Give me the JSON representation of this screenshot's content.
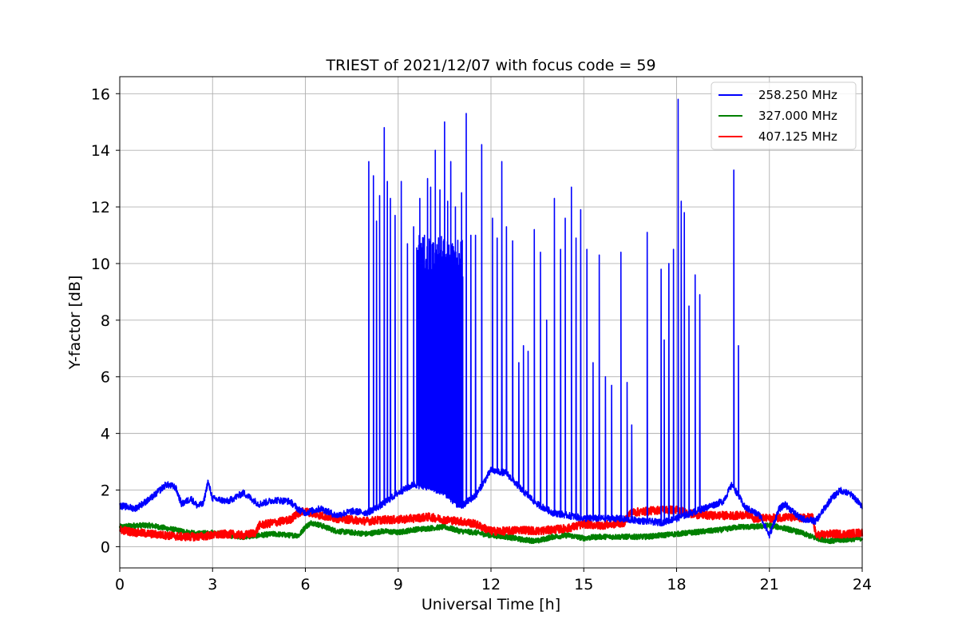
{
  "chart_data": {
    "type": "line",
    "title": "TRIEST of 2021/12/07 with focus code = 59",
    "xlabel": "Universal Time [h]",
    "ylabel": "Y-factor [dB]",
    "xlim": [
      0,
      24
    ],
    "ylim": [
      -0.75,
      16.6
    ],
    "xticks": [
      0,
      3,
      6,
      9,
      12,
      15,
      18,
      21,
      24
    ],
    "yticks": [
      0,
      2,
      4,
      6,
      8,
      10,
      12,
      14,
      16
    ],
    "grid": true,
    "legend_position": "top-right",
    "series": [
      {
        "name": "258.250 MHz",
        "color": "#0000ff",
        "base": [
          [
            0,
            1.45
          ],
          [
            0.5,
            1.35
          ],
          [
            1.0,
            1.7
          ],
          [
            1.5,
            2.2
          ],
          [
            1.8,
            2.1
          ],
          [
            2.0,
            1.5
          ],
          [
            2.3,
            1.7
          ],
          [
            2.5,
            1.45
          ],
          [
            2.7,
            1.5
          ],
          [
            2.85,
            2.3
          ],
          [
            3.0,
            1.7
          ],
          [
            3.5,
            1.6
          ],
          [
            4.0,
            1.9
          ],
          [
            4.5,
            1.5
          ],
          [
            5.0,
            1.65
          ],
          [
            5.5,
            1.6
          ],
          [
            5.8,
            1.3
          ],
          [
            6.0,
            1.2
          ],
          [
            6.5,
            1.35
          ],
          [
            7.0,
            1.1
          ],
          [
            7.5,
            1.25
          ],
          [
            8.0,
            1.2
          ],
          [
            8.5,
            1.5
          ],
          [
            9.0,
            1.9
          ],
          [
            9.5,
            2.2
          ],
          [
            10.0,
            2.1
          ],
          [
            10.5,
            1.9
          ],
          [
            11.0,
            1.4
          ],
          [
            11.5,
            1.8
          ],
          [
            12.0,
            2.7
          ],
          [
            12.5,
            2.6
          ],
          [
            13.0,
            2.0
          ],
          [
            13.5,
            1.5
          ],
          [
            14.0,
            1.2
          ],
          [
            15.0,
            1.0
          ],
          [
            16.0,
            1.0
          ],
          [
            17.0,
            0.9
          ],
          [
            17.5,
            0.85
          ],
          [
            18.0,
            1.0
          ],
          [
            18.5,
            1.2
          ],
          [
            19.0,
            1.4
          ],
          [
            19.5,
            1.6
          ],
          [
            19.8,
            2.2
          ],
          [
            20.2,
            1.4
          ],
          [
            20.7,
            1.1
          ],
          [
            21.0,
            0.4
          ],
          [
            21.3,
            1.3
          ],
          [
            21.5,
            1.5
          ],
          [
            22.0,
            1.0
          ],
          [
            22.5,
            0.9
          ],
          [
            23.0,
            1.7
          ],
          [
            23.3,
            2.0
          ],
          [
            23.7,
            1.8
          ],
          [
            24.0,
            1.4
          ]
        ],
        "noise": 0.12,
        "spikes": [
          [
            8.05,
            13.6
          ],
          [
            8.2,
            13.1
          ],
          [
            8.3,
            11.5
          ],
          [
            8.4,
            12.4
          ],
          [
            8.55,
            14.8
          ],
          [
            8.65,
            12.9
          ],
          [
            8.75,
            12.3
          ],
          [
            8.9,
            11.7
          ],
          [
            9.1,
            12.9
          ],
          [
            9.3,
            10.7
          ],
          [
            9.5,
            11.3
          ],
          [
            9.7,
            12.3
          ],
          [
            9.85,
            11.0
          ],
          [
            9.95,
            13.0
          ],
          [
            10.05,
            12.7
          ],
          [
            10.2,
            14.0
          ],
          [
            10.35,
            12.6
          ],
          [
            10.5,
            15.0
          ],
          [
            10.6,
            12.2
          ],
          [
            10.7,
            13.6
          ],
          [
            10.85,
            12.0
          ],
          [
            11.05,
            12.5
          ],
          [
            11.2,
            15.3
          ],
          [
            11.35,
            11.0
          ],
          [
            11.5,
            11.0
          ],
          [
            11.7,
            14.2
          ],
          [
            12.05,
            11.6
          ],
          [
            12.2,
            10.9
          ],
          [
            12.35,
            13.6
          ],
          [
            12.5,
            11.3
          ],
          [
            12.7,
            10.8
          ],
          [
            12.9,
            6.5
          ],
          [
            13.05,
            7.1
          ],
          [
            13.2,
            6.9
          ],
          [
            13.4,
            11.2
          ],
          [
            13.6,
            10.4
          ],
          [
            13.8,
            8.0
          ],
          [
            14.05,
            12.3
          ],
          [
            14.25,
            10.5
          ],
          [
            14.4,
            11.6
          ],
          [
            14.6,
            12.7
          ],
          [
            14.75,
            10.9
          ],
          [
            14.9,
            11.9
          ],
          [
            15.1,
            10.5
          ],
          [
            15.3,
            6.5
          ],
          [
            15.5,
            10.3
          ],
          [
            15.7,
            6.0
          ],
          [
            15.9,
            5.7
          ],
          [
            16.2,
            10.4
          ],
          [
            16.4,
            5.8
          ],
          [
            16.55,
            4.3
          ],
          [
            17.05,
            11.1
          ],
          [
            17.5,
            9.8
          ],
          [
            17.6,
            7.3
          ],
          [
            17.75,
            10.0
          ],
          [
            17.9,
            10.5
          ],
          [
            18.05,
            15.8
          ],
          [
            18.15,
            12.2
          ],
          [
            18.25,
            11.8
          ],
          [
            18.4,
            8.5
          ],
          [
            18.6,
            9.6
          ],
          [
            18.75,
            8.9
          ],
          [
            19.85,
            13.3
          ],
          [
            20.0,
            7.1
          ]
        ],
        "dense_range": [
          9.6,
          11.1
        ],
        "dense_level": 11.0
      },
      {
        "name": "327.000 MHz",
        "color": "#008000",
        "base": [
          [
            0,
            0.7
          ],
          [
            0.5,
            0.75
          ],
          [
            1.0,
            0.75
          ],
          [
            2.0,
            0.55
          ],
          [
            2.5,
            0.45
          ],
          [
            3.0,
            0.5
          ],
          [
            3.5,
            0.4
          ],
          [
            4.0,
            0.35
          ],
          [
            4.5,
            0.4
          ],
          [
            5.0,
            0.45
          ],
          [
            5.5,
            0.4
          ],
          [
            5.8,
            0.4
          ],
          [
            6.0,
            0.7
          ],
          [
            6.2,
            0.85
          ],
          [
            6.5,
            0.75
          ],
          [
            7.0,
            0.55
          ],
          [
            7.5,
            0.5
          ],
          [
            8.0,
            0.45
          ],
          [
            8.5,
            0.55
          ],
          [
            9.0,
            0.5
          ],
          [
            9.5,
            0.6
          ],
          [
            10.0,
            0.65
          ],
          [
            10.5,
            0.7
          ],
          [
            11.0,
            0.55
          ],
          [
            11.5,
            0.5
          ],
          [
            12.0,
            0.4
          ],
          [
            12.5,
            0.35
          ],
          [
            13.0,
            0.25
          ],
          [
            13.5,
            0.2
          ],
          [
            14.0,
            0.35
          ],
          [
            14.5,
            0.4
          ],
          [
            15.0,
            0.3
          ],
          [
            15.5,
            0.35
          ],
          [
            16.0,
            0.35
          ],
          [
            16.5,
            0.35
          ],
          [
            17.0,
            0.35
          ],
          [
            17.5,
            0.4
          ],
          [
            18.0,
            0.45
          ],
          [
            18.5,
            0.5
          ],
          [
            19.0,
            0.55
          ],
          [
            19.5,
            0.6
          ],
          [
            20.0,
            0.7
          ],
          [
            20.5,
            0.7
          ],
          [
            21.0,
            0.75
          ],
          [
            21.5,
            0.65
          ],
          [
            22.0,
            0.5
          ],
          [
            22.5,
            0.3
          ],
          [
            23.0,
            0.2
          ],
          [
            23.5,
            0.25
          ],
          [
            24.0,
            0.3
          ]
        ],
        "noise": 0.09
      },
      {
        "name": "407.125 MHz",
        "color": "#ff0000",
        "base": [
          [
            0,
            0.6
          ],
          [
            0.5,
            0.5
          ],
          [
            1.0,
            0.45
          ],
          [
            1.5,
            0.4
          ],
          [
            2.0,
            0.35
          ],
          [
            2.5,
            0.35
          ],
          [
            3.0,
            0.4
          ],
          [
            3.5,
            0.45
          ],
          [
            4.0,
            0.4
          ],
          [
            4.4,
            0.5
          ],
          [
            4.5,
            0.75
          ],
          [
            5.0,
            0.85
          ],
          [
            5.5,
            0.95
          ],
          [
            5.8,
            1.2
          ],
          [
            6.0,
            1.25
          ],
          [
            6.5,
            1.1
          ],
          [
            7.0,
            1.0
          ],
          [
            7.5,
            0.95
          ],
          [
            8.0,
            0.9
          ],
          [
            8.5,
            0.95
          ],
          [
            9.0,
            0.95
          ],
          [
            9.5,
            1.0
          ],
          [
            10.0,
            1.05
          ],
          [
            10.5,
            0.95
          ],
          [
            11.0,
            0.9
          ],
          [
            11.5,
            0.8
          ],
          [
            12.0,
            0.55
          ],
          [
            12.5,
            0.55
          ],
          [
            13.0,
            0.6
          ],
          [
            13.5,
            0.55
          ],
          [
            14.0,
            0.6
          ],
          [
            14.5,
            0.65
          ],
          [
            15.0,
            0.8
          ],
          [
            15.5,
            0.75
          ],
          [
            16.0,
            0.8
          ],
          [
            16.3,
            0.85
          ],
          [
            16.5,
            1.2
          ],
          [
            17.0,
            1.25
          ],
          [
            17.5,
            1.3
          ],
          [
            18.0,
            1.3
          ],
          [
            18.5,
            1.15
          ],
          [
            19.0,
            1.1
          ],
          [
            19.5,
            1.1
          ],
          [
            20.0,
            1.1
          ],
          [
            20.4,
            1.15
          ],
          [
            20.5,
            1.0
          ],
          [
            21.0,
            1.0
          ],
          [
            21.5,
            1.05
          ],
          [
            22.0,
            1.0
          ],
          [
            22.4,
            1.05
          ],
          [
            22.5,
            0.4
          ],
          [
            23.0,
            0.45
          ],
          [
            23.5,
            0.45
          ],
          [
            24.0,
            0.5
          ]
        ],
        "noise": 0.14
      }
    ]
  }
}
